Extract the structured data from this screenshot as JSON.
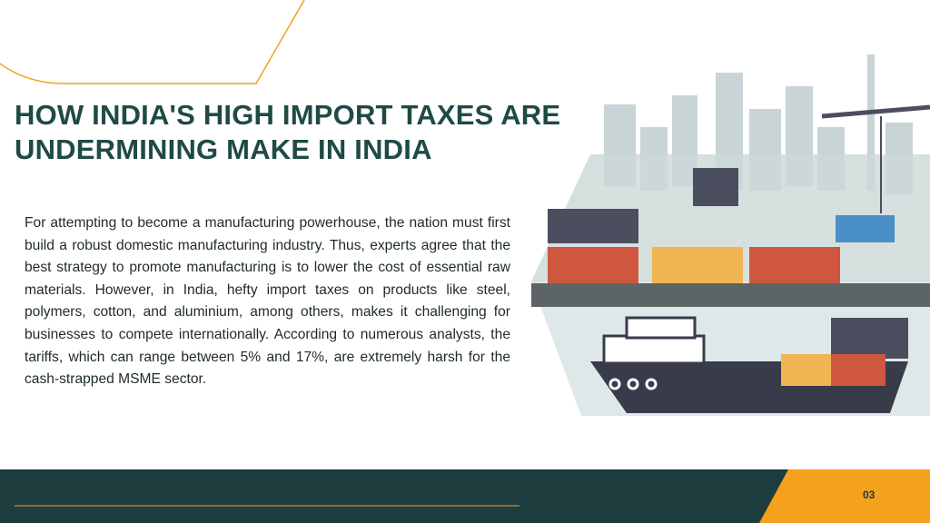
{
  "slide": {
    "title": "HOW INDIA'S HIGH IMPORT TAXES ARE UNDERMINING MAKE IN INDIA",
    "body": "For attempting to become a manufacturing powerhouse, the nation must first build a robust domestic manufacturing industry. Thus, experts agree that the best strategy to promote manufacturing is to lower the cost of essential raw materials. However, in India, hefty import taxes on products like steel, polymers, cotton, and aluminium, among others, makes it challenging for businesses to compete internationally. According to numerous analysts, the tariffs, which can range between 5% and 17%, are extremely harsh for the cash-strapped MSME sector.",
    "page_number": "03"
  }
}
